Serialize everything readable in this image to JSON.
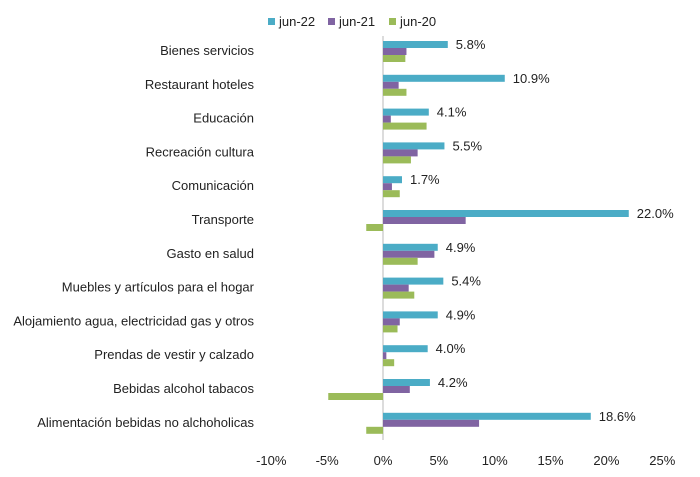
{
  "chart_data": {
    "type": "bar",
    "orientation": "horizontal",
    "title": "",
    "xlabel": "",
    "ylabel": "",
    "xlim": [
      -10,
      25
    ],
    "x_ticks": [
      "-10%",
      "-5%",
      "0%",
      "5%",
      "10%",
      "15%",
      "20%",
      "25%"
    ],
    "x_tick_values": [
      -10,
      -5,
      0,
      5,
      10,
      15,
      20,
      25
    ],
    "grid": false,
    "legend_position": "top",
    "categories": [
      "Bienes servicios",
      "Restaurant hoteles",
      "Educación",
      "Recreación cultura",
      "Comunicación",
      "Transporte",
      "Gasto en salud",
      "Muebles y artículos para el hogar",
      "Alojamiento agua, electricidad gas y otros",
      "Prendas de vestir y calzado",
      "Bebidas alcohol tabacos",
      "Alimentación bebidas no alchoholicas"
    ],
    "series": [
      {
        "name": "jun-22",
        "color": "#4BACC6",
        "values": [
          5.8,
          10.9,
          4.1,
          5.5,
          1.7,
          22.0,
          4.9,
          5.4,
          4.9,
          4.0,
          4.2,
          18.6
        ],
        "labels": [
          "5.8%",
          "10.9%",
          "4.1%",
          "5.5%",
          "1.7%",
          "22.0%",
          "4.9%",
          "5.4%",
          "4.9%",
          "4.0%",
          "4.2%",
          "18.6%"
        ]
      },
      {
        "name": "jun-21",
        "color": "#8064A2",
        "values": [
          2.1,
          1.4,
          0.7,
          3.1,
          0.8,
          7.4,
          4.6,
          2.3,
          1.5,
          0.3,
          2.4,
          8.6
        ]
      },
      {
        "name": "jun-20",
        "color": "#9BBB59",
        "values": [
          2.0,
          2.1,
          3.9,
          2.5,
          1.5,
          -1.5,
          3.1,
          2.8,
          1.3,
          1.0,
          -4.9,
          -1.5
        ]
      }
    ]
  }
}
